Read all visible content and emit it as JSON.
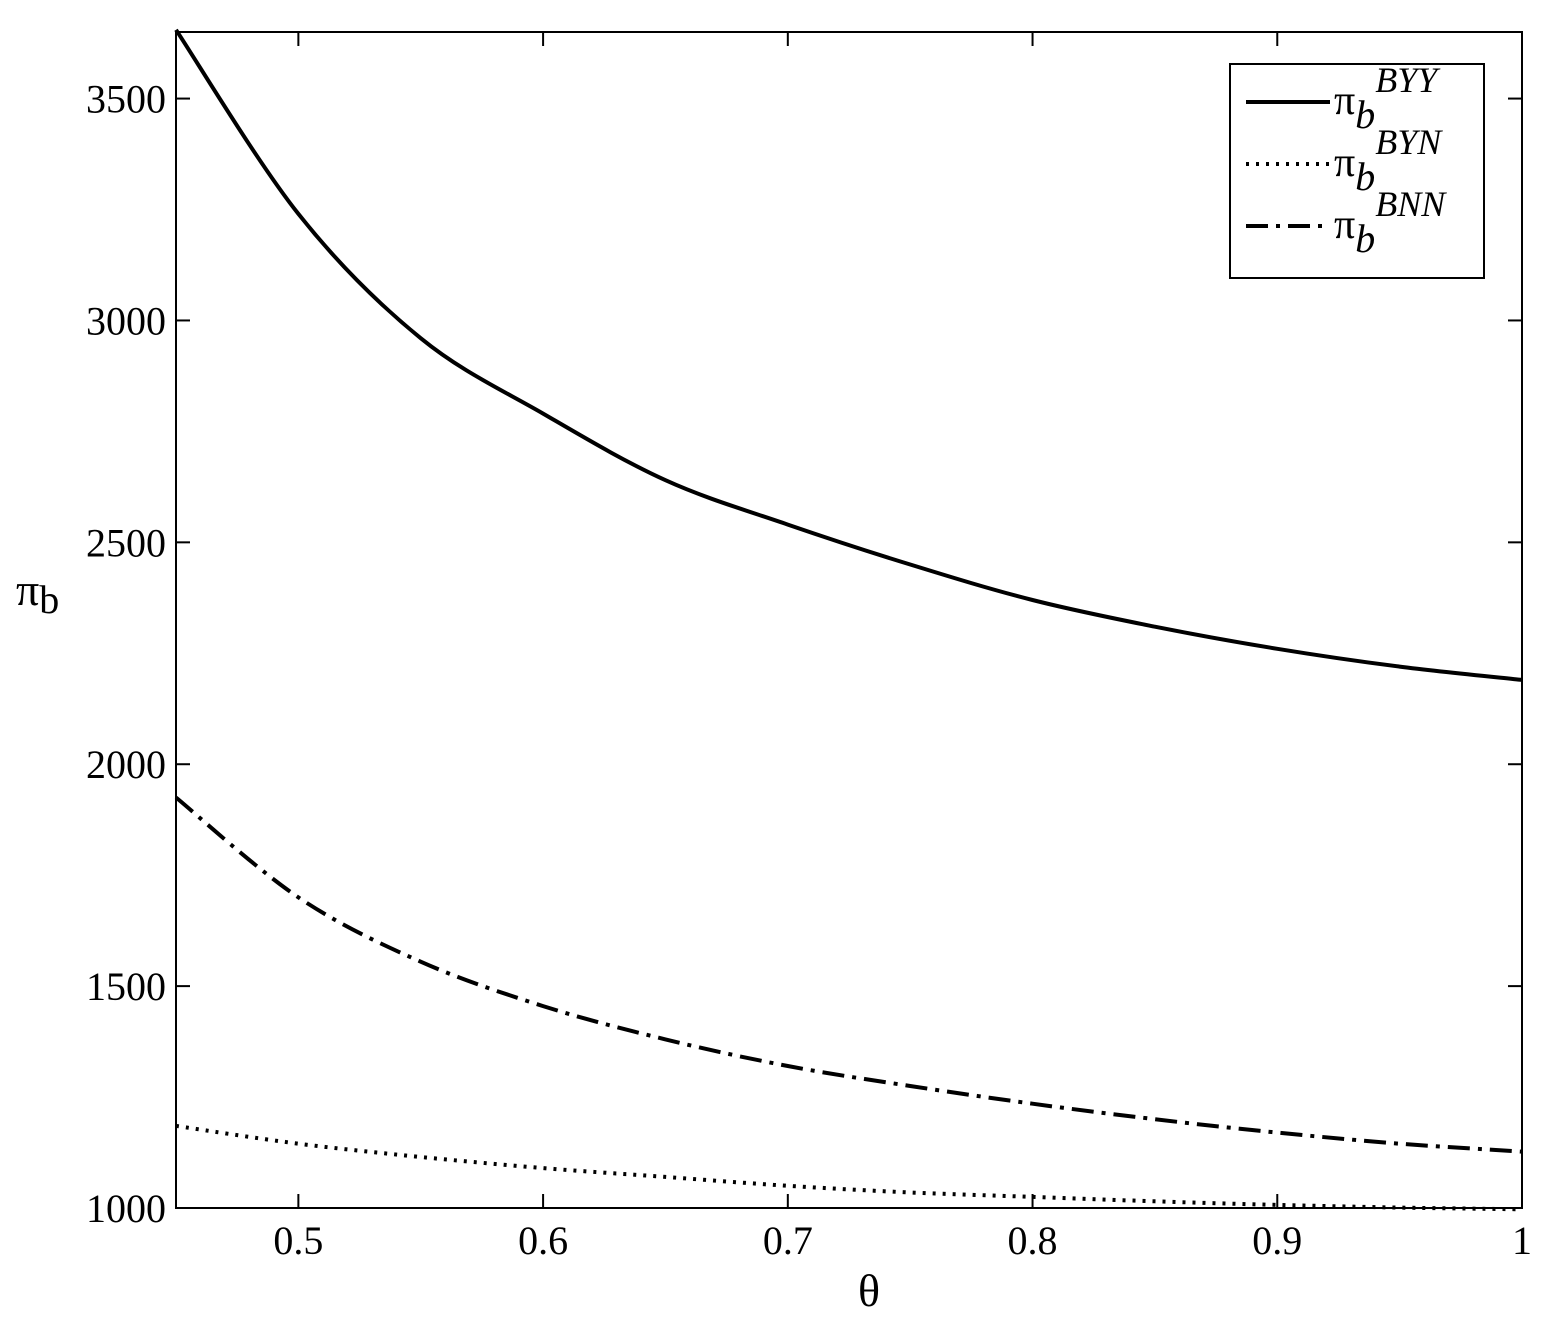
{
  "chart_data": {
    "type": "line",
    "title": "",
    "xlabel": "θ",
    "ylabel": "π",
    "ylabel_sub": "b",
    "xlim": [
      0.45,
      1.0
    ],
    "ylim": [
      1000,
      3650
    ],
    "xticks": [
      0.5,
      0.6,
      0.7,
      0.8,
      0.9,
      1.0
    ],
    "xtick_labels": [
      "0.5",
      "0.6",
      "0.7",
      "0.8",
      "0.9",
      "1"
    ],
    "yticks": [
      1000,
      1500,
      2000,
      2500,
      3000,
      3500
    ],
    "ytick_labels": [
      "1000",
      "1500",
      "2000",
      "2500",
      "3000",
      "3500"
    ],
    "grid": false,
    "legend_position": "top-right",
    "x": [
      0.45,
      0.5,
      0.55,
      0.6,
      0.65,
      0.7,
      0.75,
      0.8,
      0.85,
      0.9,
      0.95,
      1.0
    ],
    "series": [
      {
        "name": "π_b^BYY",
        "legend_base": "π",
        "legend_sub": "b",
        "legend_sup": "BYY",
        "style": "solid",
        "values": [
          3655,
          3240,
          2960,
          2790,
          2640,
          2540,
          2450,
          2370,
          2310,
          2260,
          2220,
          2190
        ]
      },
      {
        "name": "π_b^BYN",
        "legend_base": "π",
        "legend_sub": "b",
        "legend_sup": "BYN",
        "style": "dotted",
        "values": [
          1185,
          1145,
          1115,
          1090,
          1070,
          1050,
          1035,
          1025,
          1015,
          1007,
          1001,
          997
        ]
      },
      {
        "name": "π_b^BNN",
        "legend_base": "π",
        "legend_sub": "b",
        "legend_sup": "BNN",
        "style": "dashdot",
        "values": [
          1925,
          1700,
          1555,
          1455,
          1380,
          1320,
          1275,
          1235,
          1200,
          1170,
          1145,
          1127
        ]
      }
    ]
  }
}
